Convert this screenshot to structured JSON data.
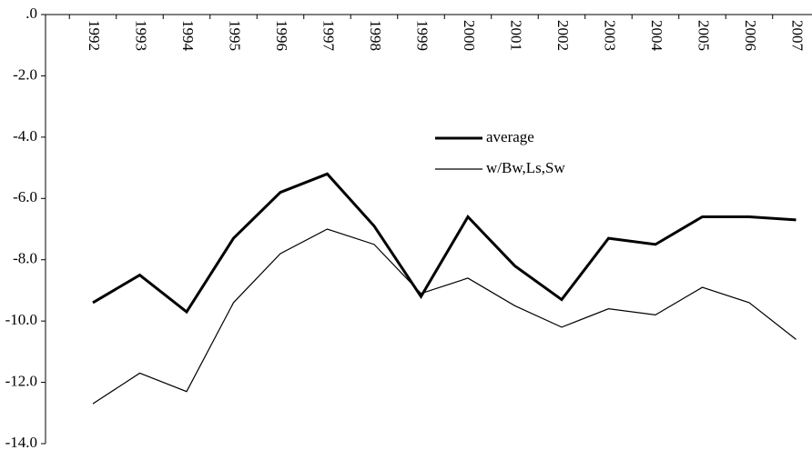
{
  "chart_data": {
    "type": "line",
    "categories": [
      "1992",
      "1993",
      "1994",
      "1995",
      "1996",
      "1997",
      "1998",
      "1999",
      "2000",
      "2001",
      "2002",
      "2003",
      "2004",
      "2005",
      "2006",
      "2007"
    ],
    "series": [
      {
        "name": "average",
        "color": "#000000",
        "values": [
          -9.4,
          -8.5,
          -9.7,
          -7.3,
          -5.8,
          -5.2,
          -6.9,
          -9.2,
          -6.6,
          -8.2,
          -9.3,
          -7.3,
          -7.5,
          -6.6,
          -6.6,
          -6.7
        ]
      },
      {
        "name": "w/Bw,Ls,Sw",
        "color": "#000000",
        "values": [
          -12.7,
          -11.7,
          -12.3,
          -9.4,
          -7.8,
          -7.0,
          -7.5,
          -9.1,
          -8.6,
          -9.5,
          -10.2,
          -9.6,
          -9.8,
          -8.9,
          -9.4,
          -10.6
        ]
      }
    ],
    "ylim": [
      0,
      -14
    ],
    "yticks": [
      {
        "value": 0,
        "label": ".0"
      },
      {
        "value": -2,
        "label": "-2.0"
      },
      {
        "value": -4,
        "label": "-4.0"
      },
      {
        "value": -6,
        "label": "-6.0"
      },
      {
        "value": -8,
        "label": "-8.0"
      },
      {
        "value": -10,
        "label": "-10.0"
      },
      {
        "value": -12,
        "label": "-12.0"
      },
      {
        "value": -14,
        "label": "-14.0"
      }
    ]
  }
}
